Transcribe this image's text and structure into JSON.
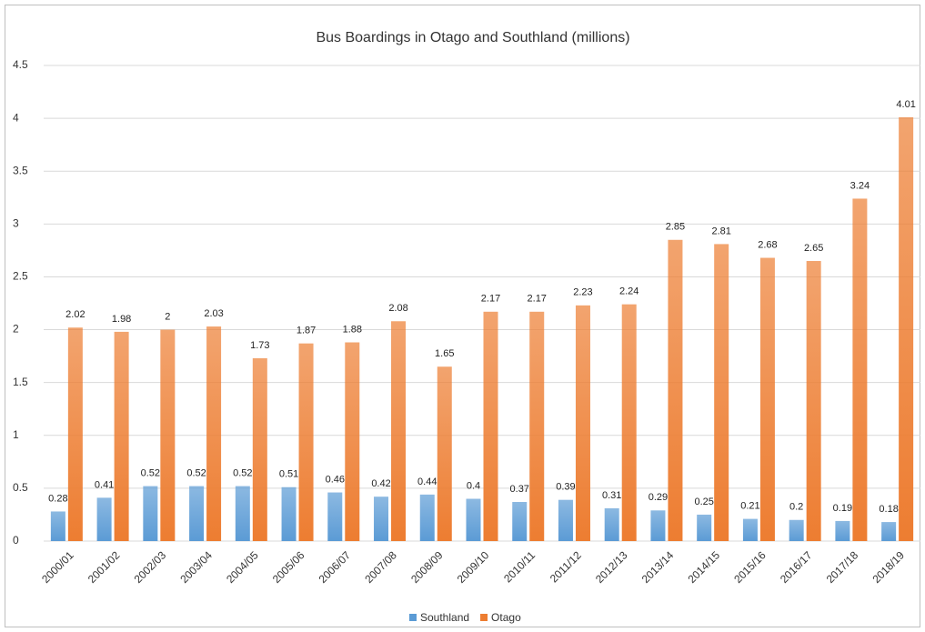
{
  "chart_data": {
    "type": "bar",
    "title": "Bus Boardings in Otago and Southland (millions)",
    "categories": [
      "2000/01",
      "2001/02",
      "2002/03",
      "2003/04",
      "2004/05",
      "2005/06",
      "2006/07",
      "2007/08",
      "2008/09",
      "2009/10",
      "2010/11",
      "2011/12",
      "2012/13",
      "2013/14",
      "2014/15",
      "2015/16",
      "2016/17",
      "2017/18",
      "2018/19"
    ],
    "series": [
      {
        "name": "Southland",
        "color": "#5b9bd5",
        "values": [
          0.28,
          0.41,
          0.52,
          0.52,
          0.52,
          0.51,
          0.46,
          0.42,
          0.44,
          0.4,
          0.37,
          0.39,
          0.31,
          0.29,
          0.25,
          0.21,
          0.2,
          0.19,
          0.18
        ]
      },
      {
        "name": "Otago",
        "color": "#ed7d31",
        "values": [
          2.02,
          1.98,
          2,
          2.03,
          1.73,
          1.87,
          1.88,
          2.08,
          1.65,
          2.17,
          2.17,
          2.23,
          2.24,
          2.85,
          2.81,
          2.68,
          2.65,
          3.24,
          4.01
        ]
      }
    ],
    "ylim": [
      0,
      4.5
    ],
    "yticks": [
      0,
      0.5,
      1,
      1.5,
      2,
      2.5,
      3,
      3.5,
      4,
      4.5
    ],
    "grid": true,
    "legend": "bottom"
  }
}
